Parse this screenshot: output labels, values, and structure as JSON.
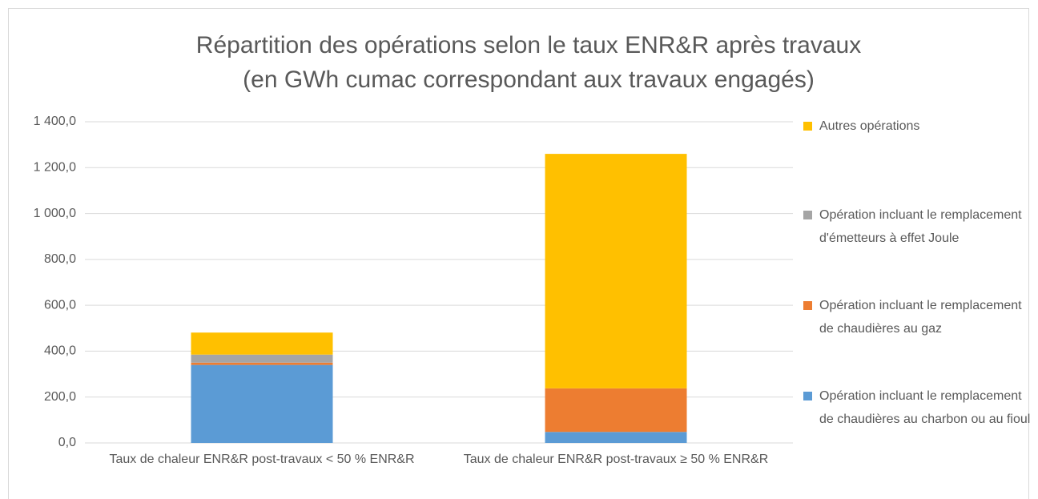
{
  "chart_data": {
    "type": "stacked_bar",
    "title": "Répartition des opérations selon le taux ENR&R après travaux",
    "subtitle": "(en GWh cumac correspondant aux travaux engagés)",
    "categories": [
      "Taux de chaleur ENR&R post-travaux < 50 % ENR&R",
      "Taux de chaleur ENR&R post-travaux ≥ 50 % ENR&R"
    ],
    "series": [
      {
        "name": "Opération incluant le remplacement de chaudières au charbon ou au fioul",
        "color": "#5b9bd5",
        "values": [
          340,
          48
        ]
      },
      {
        "name": "Opération incluant le remplacement de chaudières au gaz",
        "color": "#ed7d31",
        "values": [
          10,
          190
        ]
      },
      {
        "name": "Opération incluant le remplacement d'émetteurs à effet Joule",
        "color": "#a5a5a5",
        "values": [
          35,
          0
        ]
      },
      {
        "name": "Autres opérations",
        "color": "#ffc000",
        "values": [
          96,
          1022
        ]
      }
    ],
    "ylim": [
      0,
      1400
    ],
    "yticks": [
      {
        "value": 0,
        "label": "0,0"
      },
      {
        "value": 200,
        "label": "200,0"
      },
      {
        "value": 400,
        "label": "400,0"
      },
      {
        "value": 600,
        "label": "600,0"
      },
      {
        "value": 800,
        "label": "800,0"
      },
      {
        "value": 1000,
        "label": "1 000,0"
      },
      {
        "value": 1200,
        "label": "1 200,0"
      },
      {
        "value": 1400,
        "label": "1 400,0"
      }
    ],
    "grid": true,
    "legend": "right"
  }
}
